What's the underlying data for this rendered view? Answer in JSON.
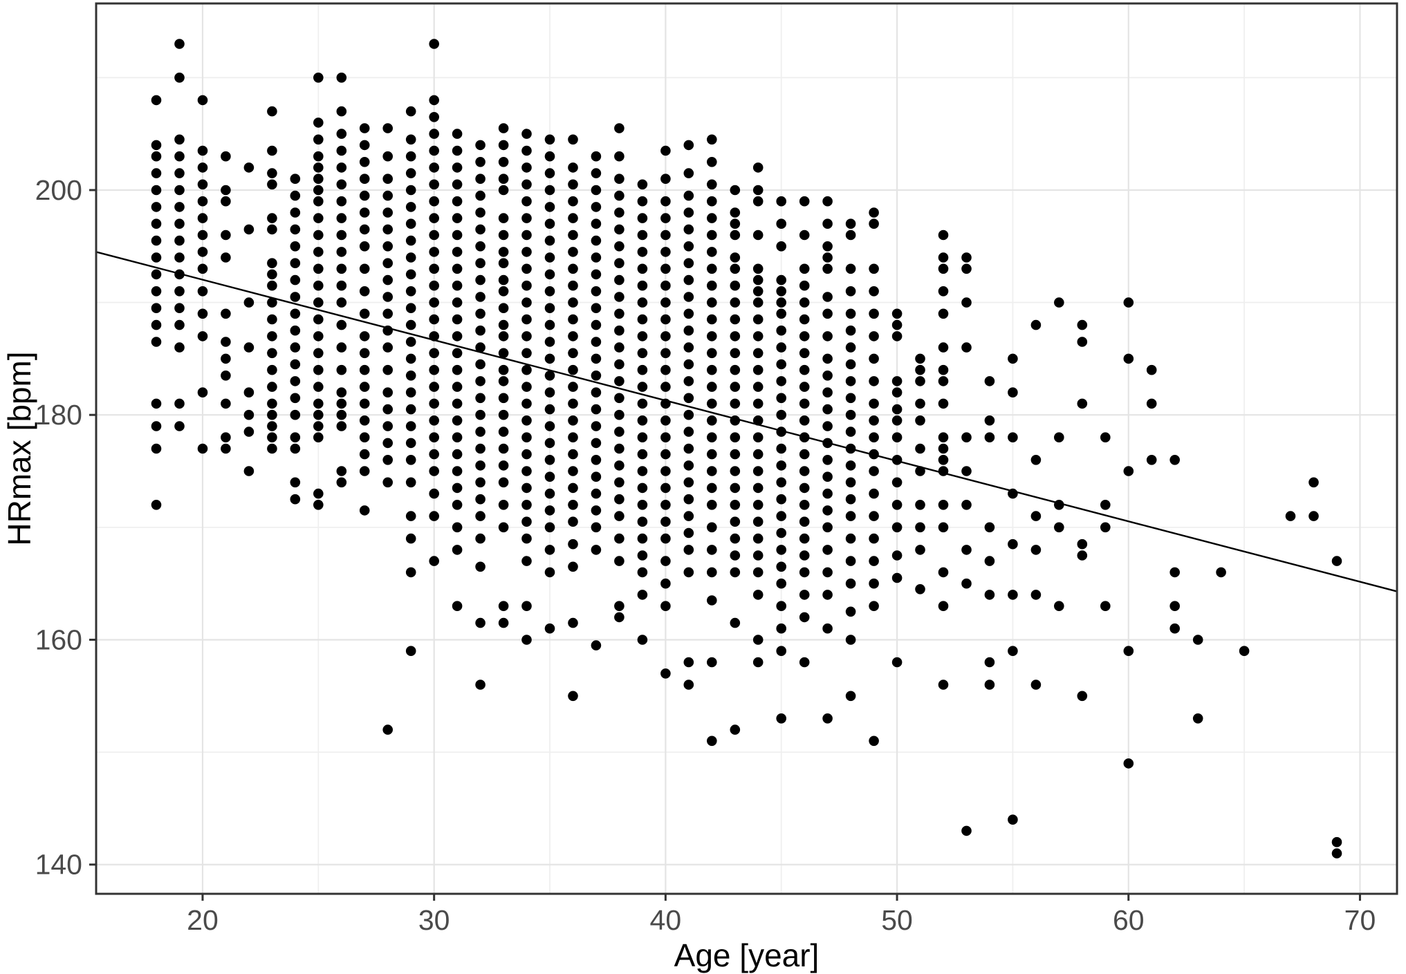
{
  "chart_data": {
    "type": "scatter",
    "title": "",
    "xlabel": "Age [year]",
    "ylabel": "HRmax [bpm]",
    "xlim": [
      15.4,
      71.6
    ],
    "ylim": [
      137.4,
      216.6
    ],
    "x_major_ticks": [
      20,
      30,
      40,
      50,
      60,
      70
    ],
    "x_minor_ticks": [
      25,
      35,
      45,
      55,
      65
    ],
    "y_major_ticks": [
      140,
      160,
      180,
      200
    ],
    "y_minor_ticks": [
      150,
      170,
      190,
      210
    ],
    "grid": true,
    "legend": "none",
    "colors": {
      "point": "#000000",
      "trend_line": "#000000",
      "grid_major": "#e4e4e4",
      "grid_minor": "#efefef",
      "panel_border": "#333333",
      "tick_mark": "#333333",
      "tick_text": "#4a4a4a",
      "axis_title": "#000000",
      "background": "#ffffff"
    },
    "trend_line": {
      "x1": 15.4,
      "y1": 194.5,
      "x2": 71.6,
      "y2": 164.3
    },
    "points_by_age": {
      "18": [
        208,
        204,
        203,
        201.5,
        200,
        198.5,
        197,
        195.5,
        194,
        192.5,
        191,
        189.5,
        188,
        186.5,
        181,
        179,
        177,
        172
      ],
      "19": [
        213,
        210,
        204.5,
        203,
        201.5,
        200,
        198.5,
        197,
        195.5,
        194,
        192.5,
        191,
        189.5,
        188,
        186,
        181,
        179
      ],
      "20": [
        208,
        203.5,
        202,
        200.5,
        199,
        197.5,
        196,
        194.5,
        193,
        191,
        189,
        187,
        182,
        177
      ],
      "21": [
        203,
        200,
        199,
        196,
        194,
        189,
        186.5,
        185,
        183.5,
        181,
        178,
        177
      ],
      "22": [
        202,
        196.5,
        190,
        186,
        182,
        180,
        178.5,
        175
      ],
      "23": [
        207,
        203.5,
        201.5,
        200.5,
        197.5,
        196.5,
        193.5,
        192.5,
        191.5,
        190,
        188.5,
        187,
        185.5,
        184,
        182.5,
        181,
        180,
        179,
        178,
        177
      ],
      "24": [
        201,
        199.5,
        198,
        196.5,
        195,
        193.5,
        192,
        190.5,
        189,
        187.5,
        186,
        184.5,
        183,
        181.5,
        180,
        178,
        177,
        174,
        172.5
      ],
      "25": [
        210,
        206,
        204.5,
        203,
        202,
        201,
        200,
        199,
        197.5,
        196,
        194.5,
        193,
        191.5,
        190,
        188.5,
        187,
        185.5,
        184,
        182.5,
        181,
        180,
        179,
        178,
        173,
        172
      ],
      "26": [
        210,
        207,
        205,
        203.5,
        202,
        200.5,
        199,
        197.5,
        196,
        194.5,
        193,
        191.5,
        190,
        188,
        186,
        184,
        182,
        181,
        180,
        179,
        175,
        174
      ],
      "27": [
        205.5,
        204,
        202.5,
        201,
        199.5,
        198,
        196.5,
        195,
        193,
        191,
        189,
        187,
        185.5,
        184,
        182.5,
        181,
        179.5,
        178,
        176.5,
        175,
        171.5
      ],
      "28": [
        205.5,
        203,
        201,
        199.5,
        198,
        196.5,
        195,
        193.5,
        192,
        190.5,
        189,
        187.5,
        186,
        184,
        182,
        180.5,
        179,
        177.5,
        176,
        174,
        152
      ],
      "29": [
        207,
        204.5,
        203,
        201.5,
        200,
        198.5,
        197,
        195.5,
        194,
        192.5,
        191,
        189.5,
        188,
        186.5,
        185,
        183.5,
        182,
        180.5,
        179,
        177.5,
        176,
        174,
        171,
        169,
        166,
        159
      ],
      "30": [
        213,
        208,
        206.5,
        205,
        203.5,
        202,
        200.5,
        199,
        197.5,
        196,
        194.5,
        193,
        191.5,
        190,
        188.5,
        187,
        185.5,
        184,
        182.5,
        181,
        179.5,
        178,
        176.5,
        175,
        173,
        171,
        167
      ],
      "31": [
        205,
        203.5,
        202,
        200.5,
        199,
        197.5,
        196,
        194.5,
        193,
        191.5,
        190,
        188.5,
        187,
        185.5,
        184,
        182.5,
        181,
        179.5,
        178,
        176.5,
        175,
        173.5,
        172,
        170,
        168,
        163
      ],
      "32": [
        204,
        202.5,
        201,
        199.5,
        198,
        196.5,
        195,
        193.5,
        192,
        190.5,
        189,
        187.5,
        186,
        184.5,
        183,
        181.5,
        180,
        178.5,
        177,
        175.5,
        174,
        172.5,
        171,
        169,
        166.5,
        161.5,
        156
      ],
      "33": [
        205.5,
        204,
        202.5,
        201,
        200,
        197.5,
        196,
        194.5,
        193.5,
        192,
        191,
        189.5,
        188,
        187,
        185.5,
        184,
        183,
        181.5,
        180,
        178.5,
        177,
        175.5,
        174,
        172,
        170,
        163,
        161.5
      ],
      "34": [
        205,
        203.5,
        202,
        200.5,
        199,
        197.5,
        196,
        194.5,
        193,
        191.5,
        190,
        188.5,
        187,
        185.5,
        184,
        182.5,
        181,
        179.5,
        178,
        176.5,
        175,
        173.5,
        172,
        170.5,
        169,
        167,
        163,
        160
      ],
      "35": [
        204.5,
        203,
        201.5,
        200,
        198.5,
        197,
        195.5,
        194,
        192.5,
        191,
        189.5,
        188,
        186.5,
        185,
        183.5,
        182,
        180.5,
        179,
        177.5,
        176,
        174.5,
        173,
        171.5,
        170,
        168,
        166,
        161
      ],
      "36": [
        204.5,
        202,
        200.5,
        199,
        197.5,
        196,
        194.5,
        193,
        191.5,
        190,
        188.5,
        187,
        185.5,
        184,
        182.5,
        181,
        179.5,
        178,
        176.5,
        175,
        173.5,
        172,
        170.5,
        168.5,
        166.5,
        161.5,
        155
      ],
      "37": [
        203,
        201.5,
        200,
        198.5,
        197,
        195.5,
        194,
        192.5,
        191,
        189.5,
        188,
        186.5,
        185,
        183.5,
        182,
        180.5,
        179,
        177.5,
        176,
        174.5,
        173,
        171.5,
        170,
        168,
        159.5
      ],
      "38": [
        205.5,
        203,
        201,
        199.5,
        198,
        196.5,
        195,
        193.5,
        192,
        190.5,
        189,
        187.5,
        186,
        184.5,
        183,
        181.5,
        180,
        178.5,
        177,
        175.5,
        174,
        172.5,
        171,
        169,
        167,
        163,
        162
      ],
      "39": [
        200.5,
        199,
        197.5,
        196,
        194.5,
        193,
        191.5,
        190,
        188.5,
        187,
        185.5,
        184,
        182.5,
        181,
        179.5,
        178,
        176.5,
        175,
        173.5,
        172,
        170.5,
        169,
        167.5,
        166,
        164,
        160
      ],
      "40": [
        203.5,
        201,
        199,
        197.5,
        196,
        194.5,
        193,
        191.5,
        190,
        188.5,
        187,
        185.5,
        184,
        182.5,
        181,
        179.5,
        178,
        176.5,
        175,
        173.5,
        172,
        170.5,
        169,
        167,
        165,
        163,
        157
      ],
      "41": [
        204,
        201.5,
        199.5,
        198,
        196.5,
        195,
        193.5,
        192,
        190.5,
        189,
        187.5,
        186,
        184.5,
        183,
        181.5,
        180,
        178.5,
        177,
        175.5,
        174,
        172.5,
        171,
        169.5,
        168,
        166,
        158,
        156
      ],
      "42": [
        204.5,
        202.5,
        200.5,
        199,
        197.5,
        196,
        194.5,
        193,
        191.5,
        190,
        188.5,
        187,
        185.5,
        184,
        182.5,
        181,
        179.5,
        178,
        176.5,
        175,
        173.5,
        172,
        170,
        168,
        166,
        163.5,
        158,
        151
      ],
      "43": [
        200,
        198,
        197,
        196,
        194,
        193,
        191.5,
        190,
        188.5,
        187,
        185.5,
        184,
        182.5,
        181,
        179.5,
        178,
        176.5,
        175,
        173.5,
        172,
        170.5,
        169,
        167.5,
        166,
        161.5,
        152
      ],
      "44": [
        202,
        200,
        199,
        196,
        193,
        192,
        191,
        190,
        188.5,
        187,
        185.5,
        184,
        182.5,
        181,
        179.5,
        178,
        176.5,
        175,
        173.5,
        172,
        170.5,
        169,
        167.5,
        166,
        164,
        160,
        158
      ],
      "45": [
        199,
        197,
        195,
        192,
        191,
        190,
        189,
        187.5,
        186,
        184.5,
        183,
        181.5,
        180,
        178.5,
        177,
        175.5,
        174,
        172.5,
        171,
        169.5,
        168,
        166.5,
        165,
        163,
        161,
        159,
        153
      ],
      "46": [
        199,
        196,
        193,
        191.5,
        190,
        188.5,
        187,
        185.5,
        184,
        182.5,
        181,
        179.5,
        178,
        176.5,
        175,
        173.5,
        172,
        170.5,
        169,
        167.5,
        166,
        164,
        162,
        158
      ],
      "47": [
        199,
        197,
        195,
        194,
        193,
        190.5,
        189,
        187,
        185,
        183.5,
        182,
        180.5,
        179,
        177.5,
        176,
        174.5,
        173,
        171.5,
        170,
        168,
        166,
        164,
        161,
        153
      ],
      "48": [
        197,
        196,
        193,
        191,
        189,
        187.5,
        186,
        184.5,
        183,
        181.5,
        180,
        178.5,
        177,
        175.5,
        174,
        172.5,
        171,
        169,
        167,
        165,
        162.5,
        160,
        155
      ],
      "49": [
        198,
        197,
        193,
        191,
        189,
        187,
        185,
        183,
        181,
        179.5,
        178,
        176.5,
        175,
        173,
        171,
        169,
        167,
        165,
        163,
        151
      ],
      "50": [
        189,
        188,
        187,
        183,
        182,
        180.5,
        179.5,
        178,
        176,
        174,
        172,
        170,
        167.5,
        165.5,
        158
      ],
      "51": [
        185,
        184,
        183,
        181,
        179.5,
        177,
        175,
        172,
        170,
        168,
        164.5
      ],
      "52": [
        196,
        194,
        193,
        191,
        189,
        186,
        184,
        183,
        181,
        178,
        177,
        176,
        175,
        172,
        170,
        166,
        163,
        156
      ],
      "53": [
        194,
        193,
        190,
        186,
        178,
        175,
        172,
        168,
        165,
        143
      ],
      "54": [
        183,
        179.5,
        178,
        170,
        167,
        164,
        158,
        156
      ],
      "55": [
        185,
        182,
        178,
        173,
        168.5,
        164,
        159,
        144
      ],
      "56": [
        188,
        176,
        171,
        168,
        164,
        156
      ],
      "57": [
        190,
        178,
        172,
        170,
        163
      ],
      "58": [
        188,
        186.5,
        181,
        168.5,
        167.5,
        155
      ],
      "59": [
        178,
        172,
        170,
        163
      ],
      "60": [
        190,
        185,
        175,
        159,
        149
      ],
      "61": [
        184,
        181,
        176
      ],
      "62": [
        176,
        166,
        163,
        161
      ],
      "63": [
        160,
        153
      ],
      "64": [
        166
      ],
      "65": [
        159
      ],
      "67": [
        171
      ],
      "68": [
        174,
        171
      ],
      "69": [
        167,
        142,
        141
      ]
    }
  }
}
